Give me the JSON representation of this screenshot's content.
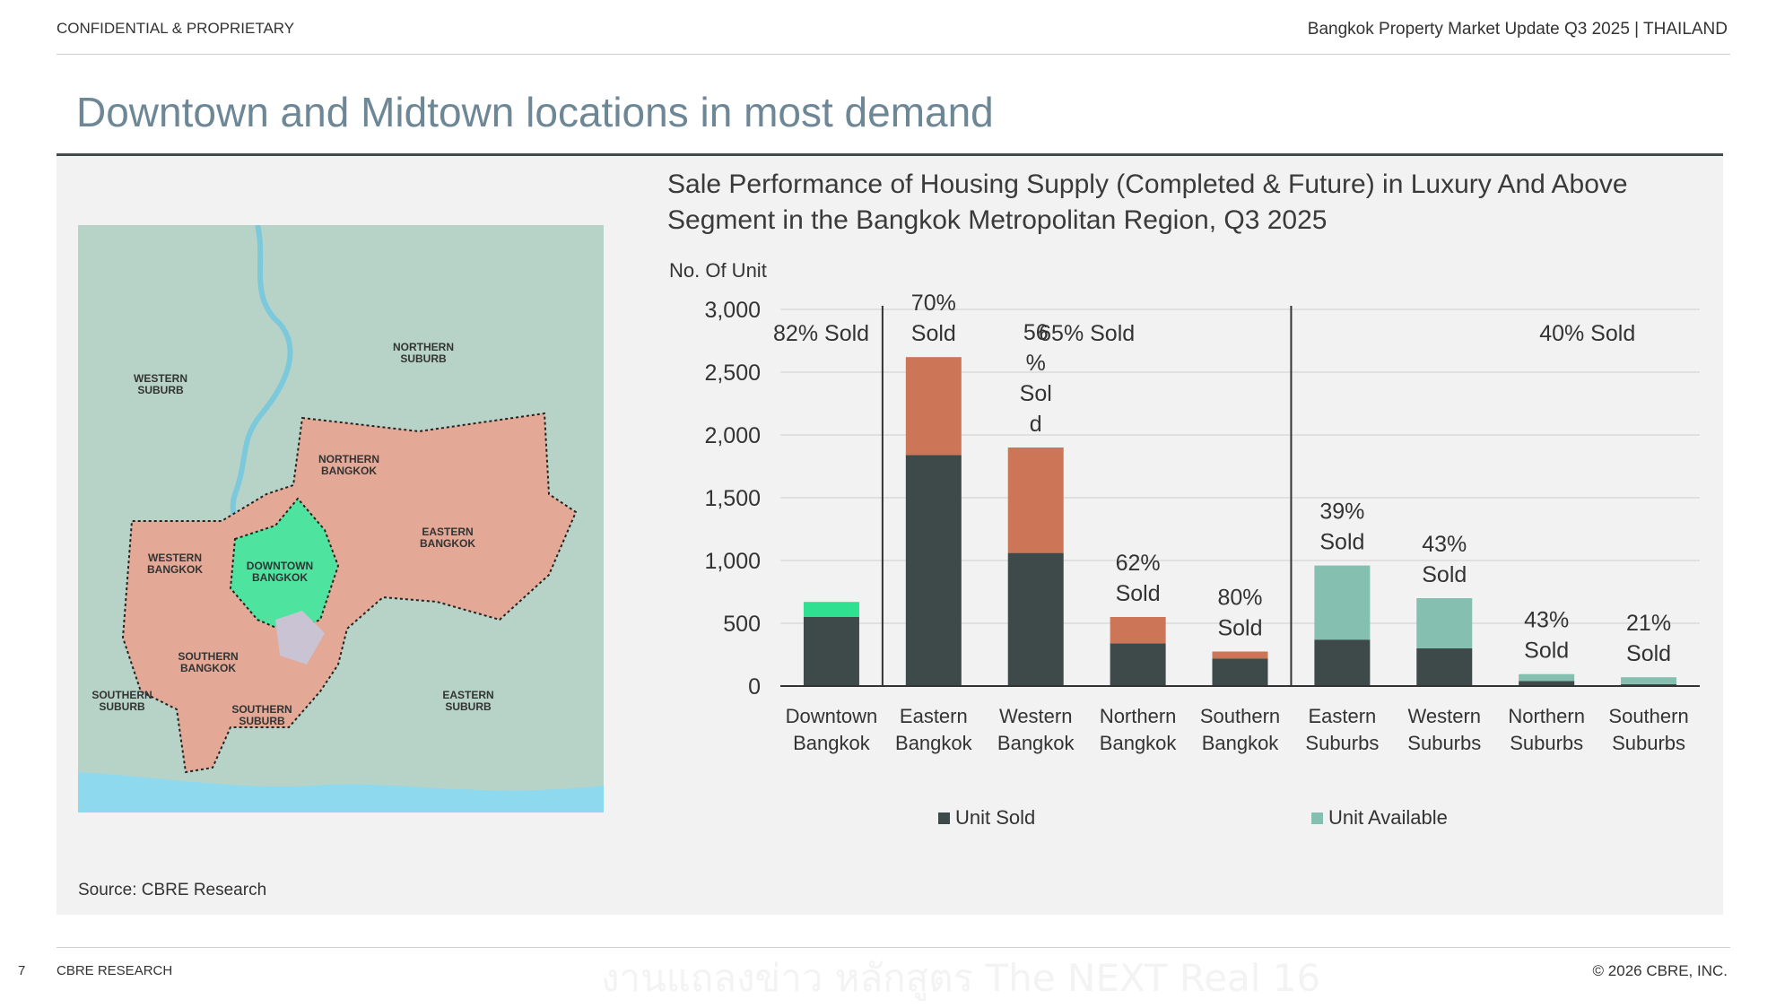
{
  "header": {
    "left": "CONFIDENTIAL & PROPRIETARY",
    "right": "Bangkok Property Market Update Q3 2025 |  THAILAND"
  },
  "title": "Downtown and Midtown locations in most demand",
  "map": {
    "labels": {
      "northern_suburb": [
        "NORTHERN",
        "SUBURB"
      ],
      "western_suburb": [
        "WESTERN",
        "SUBURB"
      ],
      "northern_bangkok": [
        "NORTHERN",
        "BANGKOK"
      ],
      "eastern_bangkok": [
        "EASTERN",
        "BANGKOK"
      ],
      "western_bangkok": [
        "WESTERN",
        "BANGKOK"
      ],
      "downtown_bangkok": [
        "DOWNTOWN",
        "BANGKOK"
      ],
      "southern_bangkok": [
        "SOUTHERN",
        "BANGKOK"
      ],
      "southern_suburb_left": [
        "SOUTHERN",
        "SUBURB"
      ],
      "southern_suburb_mid": [
        "SOUTHERN",
        "SUBURB"
      ],
      "eastern_suburb": [
        "EASTERN",
        "SUBURB"
      ]
    },
    "colors": {
      "suburb": "#b7d3c8",
      "bangkok": "#e3a996",
      "downtown": "#4fe3a0",
      "sea": "#8fd9ee",
      "river": "#7cc9dc"
    }
  },
  "source": "Source: CBRE Research",
  "chart_data": {
    "type": "bar",
    "title": "Sale Performance of Housing Supply (Completed & Future) in Luxury And Above Segment in the Bangkok Metropolitan Region, Q3 2025",
    "ylabel": "No. Of Unit",
    "ylim": [
      0,
      3000
    ],
    "yticks": [
      "0",
      "500",
      "1,000",
      "1,500",
      "2,000",
      "2,500",
      "3,000"
    ],
    "categories": [
      [
        "Downtown",
        "Bangkok"
      ],
      [
        "Eastern",
        "Bangkok"
      ],
      [
        "Western",
        "Bangkok"
      ],
      [
        "Northern",
        "Bangkok"
      ],
      [
        "Southern",
        "Bangkok"
      ],
      [
        "Eastern",
        "Suburbs"
      ],
      [
        "Western",
        "Suburbs"
      ],
      [
        "Northern",
        "Suburbs"
      ],
      [
        "Southern",
        "Suburbs"
      ]
    ],
    "series": [
      {
        "name": "Unit Sold",
        "color": "#3e4a4a",
        "values": [
          550,
          1840,
          1060,
          340,
          220,
          370,
          300,
          40,
          15
        ]
      },
      {
        "name": "Unit Available",
        "colors": [
          "#2ee08f",
          "#cd7657",
          "#cd7657",
          "#cd7657",
          "#cd7657",
          "#84bfb0",
          "#84bfb0",
          "#84bfb0",
          "#84bfb0"
        ],
        "values": [
          120,
          780,
          840,
          210,
          55,
          590,
          400,
          55,
          55
        ]
      }
    ],
    "bar_labels": [
      null,
      [
        "70%",
        "Sold"
      ],
      [
        "56",
        "%",
        "Sol",
        "d"
      ],
      [
        "62%",
        "Sold"
      ],
      [
        "80%",
        "Sold"
      ],
      [
        "39%",
        "Sold"
      ],
      [
        "43%",
        "Sold"
      ],
      [
        "43%",
        "Sold"
      ],
      [
        "21%",
        "Sold"
      ]
    ],
    "group_labels": [
      "82% Sold",
      "65% Sold",
      "40% Sold"
    ],
    "legend": [
      "Unit Sold",
      "Unit Available"
    ],
    "legend_colors": [
      "#3e4a4a",
      "#84bfb0"
    ],
    "grid": true,
    "legend_position": "bottom"
  },
  "footer": {
    "page": "7",
    "left": "CBRE RESEARCH",
    "right": "© 2026 CBRE, INC.",
    "watermark": "งานแถลงข่าว หลักสูตร The NEXT Real 16"
  }
}
